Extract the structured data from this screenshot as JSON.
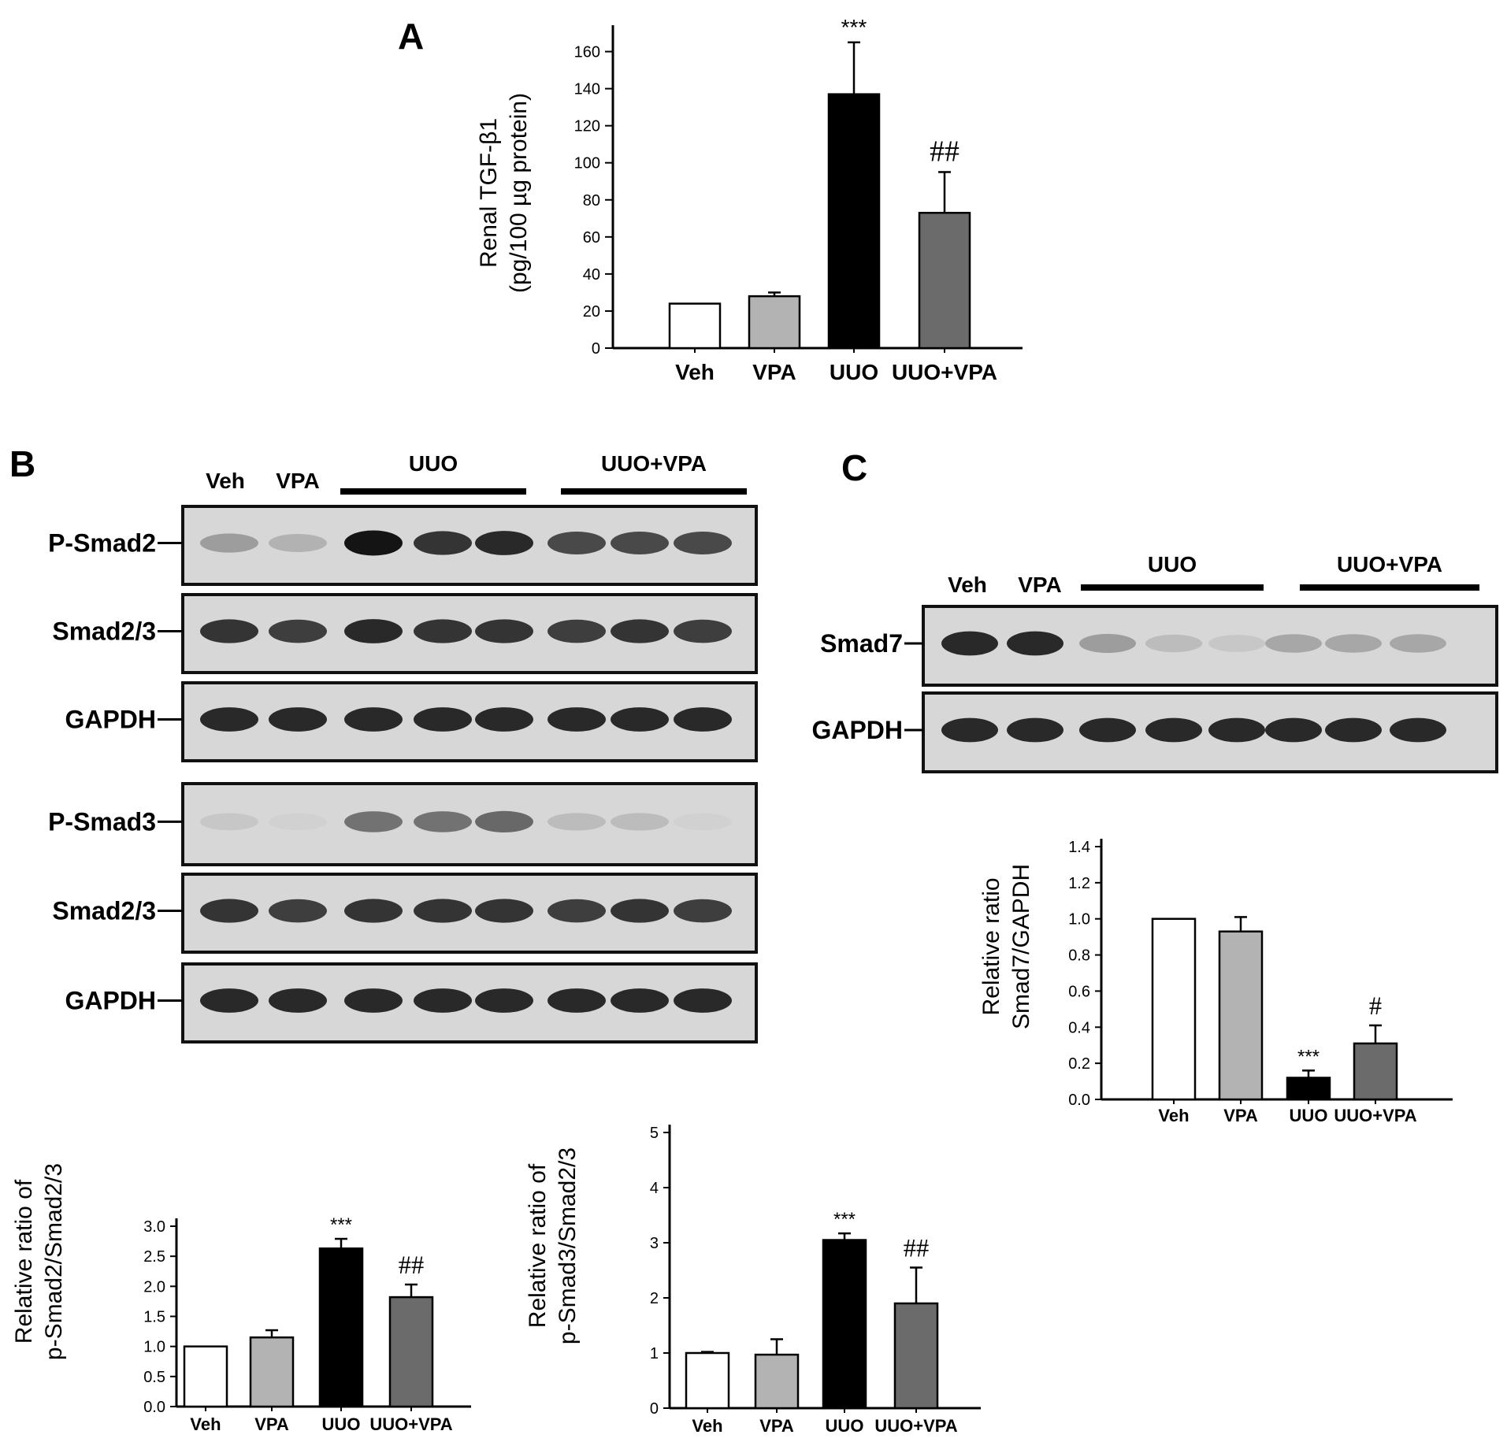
{
  "panels": {
    "A": {
      "label": "A",
      "ylabel_line1": "Renal TGF-β1",
      "ylabel_line2": "(pg/100 µg protein)",
      "annotations": [
        {
          "category": "UUO",
          "text": "***"
        },
        {
          "category": "UUO+VPA",
          "text": "##"
        }
      ]
    },
    "B": {
      "label": "B",
      "blot": {
        "lane_labels": [
          "Veh",
          "VPA"
        ],
        "group_labels": [
          "UUO",
          "UUO+VPA"
        ],
        "rows": [
          {
            "name": "P-Smad2",
            "intensity": [
              0.35,
              0.25,
              1.0,
              0.85,
              0.9,
              0.75,
              0.75,
              0.75
            ]
          },
          {
            "name": "Smad2/3",
            "intensity": [
              0.85,
              0.8,
              0.9,
              0.85,
              0.85,
              0.8,
              0.85,
              0.8
            ]
          },
          {
            "name": "GAPDH",
            "intensity": [
              0.9,
              0.9,
              0.9,
              0.9,
              0.9,
              0.9,
              0.9,
              0.9
            ]
          },
          {
            "name": "P-Smad3",
            "intensity": [
              0.15,
              0.1,
              0.55,
              0.55,
              0.6,
              0.2,
              0.2,
              0.1
            ]
          },
          {
            "name": "Smad2/3",
            "intensity": [
              0.85,
              0.8,
              0.85,
              0.85,
              0.85,
              0.8,
              0.85,
              0.8
            ]
          },
          {
            "name": "GAPDH",
            "intensity": [
              0.9,
              0.9,
              0.9,
              0.9,
              0.9,
              0.9,
              0.9,
              0.9
            ]
          }
        ]
      }
    },
    "C": {
      "label": "C",
      "blot": {
        "lane_labels": [
          "Veh",
          "VPA"
        ],
        "group_labels": [
          "UUO",
          "UUO+VPA"
        ],
        "rows": [
          {
            "name": "Smad7",
            "intensity": [
              0.9,
              0.9,
              0.35,
              0.2,
              0.15,
              0.3,
              0.3,
              0.3
            ]
          },
          {
            "name": "GAPDH",
            "intensity": [
              0.9,
              0.9,
              0.9,
              0.9,
              0.9,
              0.9,
              0.9,
              0.9
            ]
          }
        ]
      }
    }
  },
  "colors": {
    "Veh": "#ffffff",
    "VPA": "#b3b3b3",
    "UUO": "#000000",
    "UUO+VPA": "#6b6b6b"
  },
  "chart_data": [
    {
      "id": "A",
      "type": "bar",
      "title": "",
      "xlabel": "",
      "ylabel": "Renal TGF-β1 (pg/100 µg protein)",
      "categories": [
        "Veh",
        "VPA",
        "UUO",
        "UUO+VPA"
      ],
      "values": [
        24,
        28,
        137,
        73
      ],
      "errors": [
        0,
        2,
        28,
        22
      ],
      "ylim": [
        0,
        170
      ],
      "yticks": [
        0,
        20,
        40,
        60,
        80,
        100,
        120,
        140,
        160
      ],
      "ytick_labels": [
        "0",
        "20",
        "40",
        "60",
        "80",
        "100",
        "120",
        "140",
        "160"
      ],
      "annotations": [
        {
          "category": "UUO",
          "text": "***"
        },
        {
          "category": "UUO+VPA",
          "text": "##"
        }
      ]
    },
    {
      "id": "B-left",
      "type": "bar",
      "title": "",
      "xlabel": "",
      "ylabel": "Relative ratio of p-Smad2/Smad2/3",
      "categories": [
        "Veh",
        "VPA",
        "UUO",
        "UUO+VPA"
      ],
      "values": [
        1.0,
        1.15,
        2.63,
        1.82
      ],
      "errors": [
        0,
        0.12,
        0.16,
        0.21
      ],
      "ylim": [
        0,
        3.0
      ],
      "yticks": [
        0,
        0.5,
        1.0,
        1.5,
        2.0,
        2.5,
        3.0
      ],
      "ytick_labels": [
        "0.0",
        "0.5",
        "1.0",
        "1.5",
        "2.0",
        "2.5",
        "3.0"
      ],
      "annotations": [
        {
          "category": "UUO",
          "text": "***"
        },
        {
          "category": "UUO+VPA",
          "text": "##"
        }
      ]
    },
    {
      "id": "B-right",
      "type": "bar",
      "title": "",
      "xlabel": "",
      "ylabel": "Relative ratio of p-Smad3/Smad2/3",
      "categories": [
        "Veh",
        "VPA",
        "UUO",
        "UUO+VPA"
      ],
      "values": [
        1.0,
        0.97,
        3.05,
        1.9
      ],
      "errors": [
        0.02,
        0.28,
        0.12,
        0.65
      ],
      "ylim": [
        0,
        5
      ],
      "yticks": [
        0,
        1,
        2,
        3,
        4,
        5
      ],
      "ytick_labels": [
        "0",
        "1",
        "2",
        "3",
        "4",
        "5"
      ],
      "annotations": [
        {
          "category": "UUO",
          "text": "***"
        },
        {
          "category": "UUO+VPA",
          "text": "##"
        }
      ]
    },
    {
      "id": "C",
      "type": "bar",
      "title": "",
      "xlabel": "",
      "ylabel": "Relative ratio Smad7/GAPDH",
      "categories": [
        "Veh",
        "VPA",
        "UUO",
        "UUO+VPA"
      ],
      "values": [
        1.0,
        0.93,
        0.12,
        0.31
      ],
      "errors": [
        0,
        0.08,
        0.04,
        0.1
      ],
      "ylim": [
        0,
        1.4
      ],
      "yticks": [
        0,
        0.2,
        0.4,
        0.6,
        0.8,
        1.0,
        1.2,
        1.4
      ],
      "ytick_labels": [
        "0.0",
        "0.2",
        "0.4",
        "0.6",
        "0.8",
        "1.0",
        "1.2",
        "1.4"
      ],
      "annotations": [
        {
          "category": "UUO",
          "text": "***"
        },
        {
          "category": "UUO+VPA",
          "text": "#"
        }
      ]
    }
  ]
}
